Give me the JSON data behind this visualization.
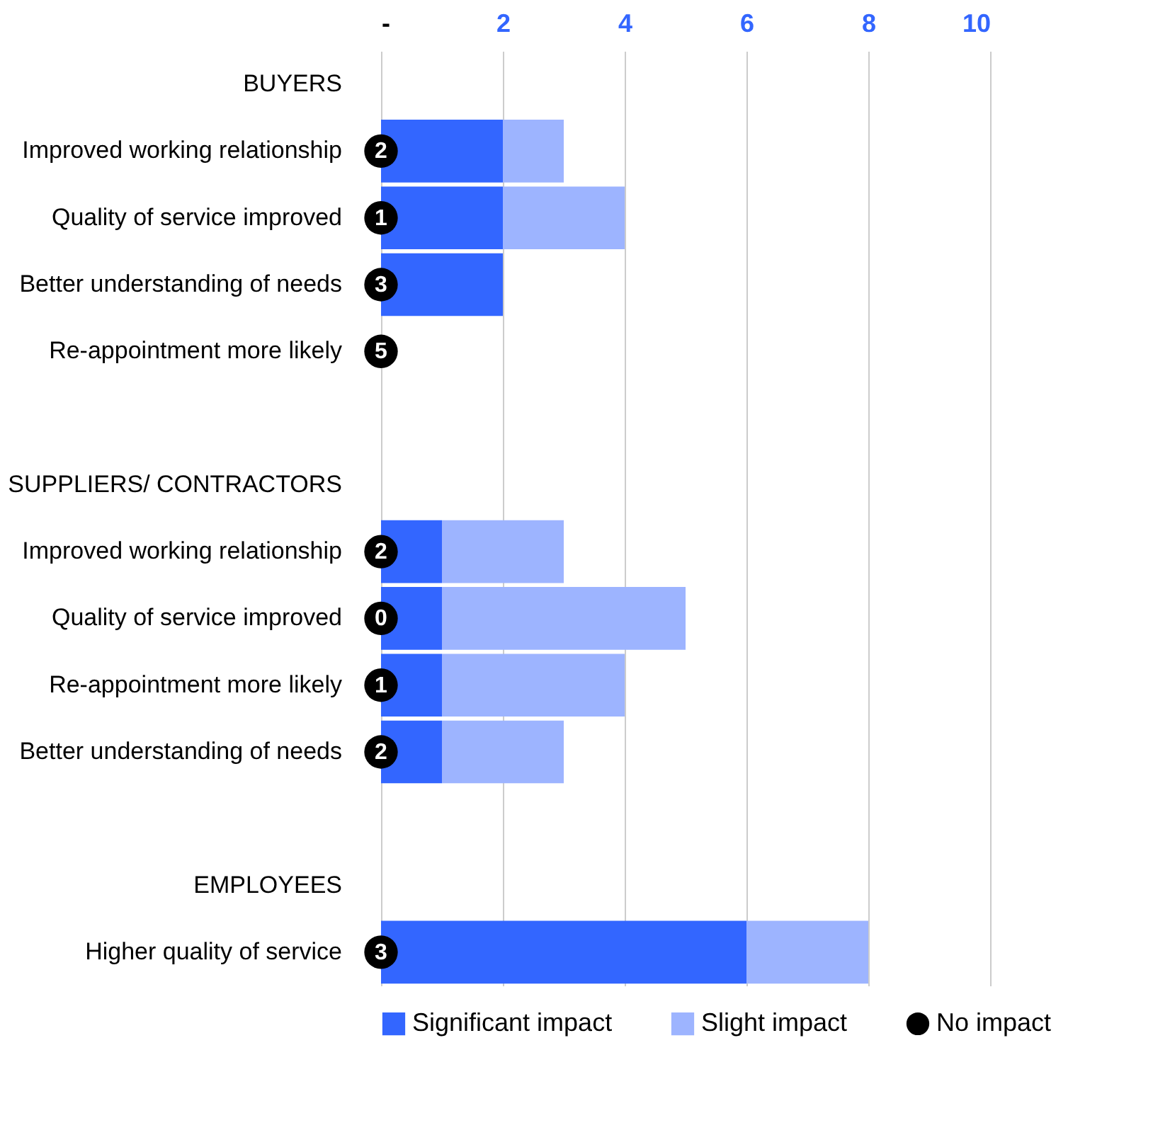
{
  "chart_data": {
    "type": "bar",
    "orientation": "horizontal",
    "stacked": true,
    "categories": [
      "BUYERS",
      "Improved working relationship",
      "Quality of service improved",
      "Better understanding of needs",
      "Re-appointment more likely",
      null,
      "SUPPLIERS/ CONTRACTORS",
      "Improved working relationship",
      "Quality of service improved",
      "Re-appointment more likely",
      "Better understanding of needs",
      null,
      "EMPLOYEES",
      "Higher quality of service"
    ],
    "series": [
      {
        "name": "Significant impact",
        "color": "#3366ff",
        "values": [
          null,
          2,
          2,
          2,
          0,
          null,
          null,
          1,
          1,
          1,
          1,
          null,
          null,
          6
        ]
      },
      {
        "name": "Slight impact",
        "color": "#9db4ff",
        "values": [
          null,
          1,
          2,
          0,
          0,
          null,
          null,
          2,
          4,
          3,
          2,
          null,
          null,
          2
        ]
      },
      {
        "name": "No impact",
        "type": "scatter",
        "color": "#000000",
        "values": [
          null,
          null,
          null,
          null,
          null,
          null,
          null,
          null,
          null,
          null,
          null,
          null,
          null,
          null
        ]
      }
    ],
    "annotations": [
      "2",
      "1",
      "3",
      "5",
      "2",
      "0",
      "1",
      "2",
      "3"
    ],
    "xlim": [
      0,
      10
    ],
    "xticks": [
      {
        "value": 0,
        "label": "-"
      },
      2,
      4,
      6,
      8,
      10
    ],
    "grid": "x",
    "legend": "bottom",
    "marker": "circle"
  }
}
